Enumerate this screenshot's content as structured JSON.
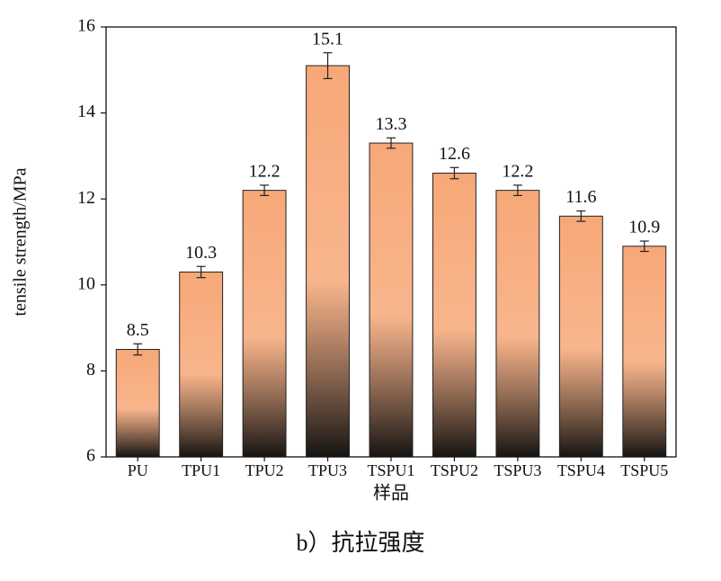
{
  "chart_data": {
    "type": "bar",
    "caption": "b）抗拉强度",
    "x_label": "样品",
    "y_label": "tensile strength/MPa",
    "categories": [
      "PU",
      "TPU1",
      "TPU2",
      "TPU3",
      "TSPU1",
      "TSPU2",
      "TSPU3",
      "TSPU4",
      "TSPU5"
    ],
    "values": [
      8.5,
      10.3,
      12.2,
      15.1,
      13.3,
      12.6,
      12.2,
      11.6,
      10.9
    ],
    "errors": [
      0.13,
      0.13,
      0.12,
      0.3,
      0.12,
      0.13,
      0.12,
      0.12,
      0.12
    ],
    "color_top": "#f7a878",
    "color_bottom": "#161412",
    "ylim": [
      6,
      16
    ],
    "yticks": [
      6,
      8,
      10,
      12,
      14,
      16
    ],
    "grid": false
  }
}
